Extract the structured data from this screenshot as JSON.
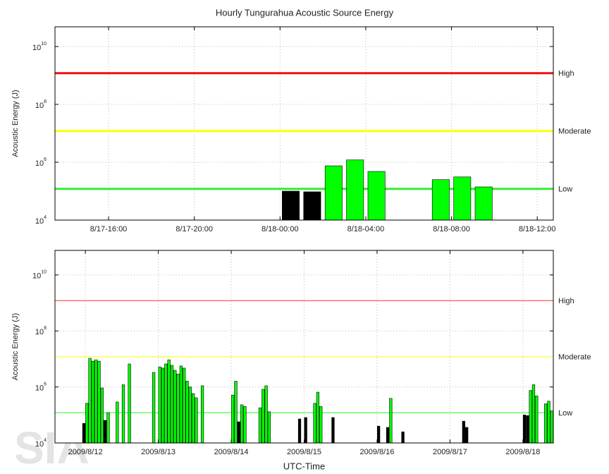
{
  "title": "Hourly Tungurahua Acoustic Source Energy",
  "watermark": "SIA",
  "chart_data": [
    {
      "type": "bar",
      "y_label": "Acoustic Energy (J)",
      "y_log": true,
      "ylim": [
        10000,
        48000000000
      ],
      "yticks": [
        {
          "value": 10000,
          "label": "10",
          "power": "4"
        },
        {
          "value": 1000000,
          "label": "10",
          "power": "6"
        },
        {
          "value": 100000000,
          "label": "10",
          "power": "8"
        },
        {
          "value": 10000000000,
          "label": "10",
          "power": "10"
        }
      ],
      "xlim": [
        "8/17-13:30",
        "8/18-12:45"
      ],
      "xticks": [
        "8/17-16:00",
        "8/17-20:00",
        "8/18-00:00",
        "8/18-04:00",
        "8/18-08:00",
        "8/18-12:00"
      ],
      "grid": true,
      "thresholds": [
        {
          "label": "High",
          "value": 1200000000,
          "color": "#ee1111"
        },
        {
          "label": "Moderate",
          "value": 12000000,
          "color": "#ffff00"
        },
        {
          "label": "Low",
          "value": 120000,
          "color": "#33ee33"
        }
      ],
      "bar_colors": {
        "above": "#00ff00",
        "below": "#000000"
      },
      "x": [
        "8/18-00:00",
        "8/18-01:00",
        "8/18-02:00",
        "8/18-03:00",
        "8/18-04:00",
        "8/18-07:00",
        "8/18-08:00",
        "8/18-09:00"
      ],
      "values": [
        100000,
        95000,
        750000,
        1200000,
        480000,
        250000,
        310000,
        140000
      ]
    },
    {
      "type": "bar",
      "y_label": "Acoustic Energy (J)",
      "x_label": "UTC-Time",
      "y_log": true,
      "ylim": [
        10000,
        75000000000
      ],
      "yticks": [
        {
          "value": 10000,
          "label": "10",
          "power": "4"
        },
        {
          "value": 1000000,
          "label": "10",
          "power": "6"
        },
        {
          "value": 100000000,
          "label": "10",
          "power": "8"
        },
        {
          "value": 10000000000,
          "label": "10",
          "power": "10"
        }
      ],
      "xlim": [
        "2009/8/11 14:00",
        "2009/8/18 10:00"
      ],
      "xticks": [
        "2009/8/12",
        "2009/8/13",
        "2009/8/14",
        "2009/8/15",
        "2009/8/16",
        "2009/8/17",
        "2009/8/18"
      ],
      "grid": true,
      "thresholds": [
        {
          "label": "High",
          "value": 1200000000,
          "color": "#ff7070"
        },
        {
          "label": "Moderate",
          "value": 12000000,
          "color": "#ffff55"
        },
        {
          "label": "Low",
          "value": 120000,
          "color": "#66ff66"
        }
      ],
      "bar_colors": {
        "above": "#00ff00",
        "below": "#000000"
      },
      "x": [
        "2009/8/11 23:00",
        "2009/8/12 00:00",
        "2009/8/12 01:00",
        "2009/8/12 02:00",
        "2009/8/12 03:00",
        "2009/8/12 04:00",
        "2009/8/12 05:00",
        "2009/8/12 06:00",
        "2009/8/12 07:00",
        "2009/8/12 10:00",
        "2009/8/12 12:00",
        "2009/8/12 14:00",
        "2009/8/12 22:00",
        "2009/8/13 00:00",
        "2009/8/13 01:00",
        "2009/8/13 02:00",
        "2009/8/13 03:00",
        "2009/8/13 04:00",
        "2009/8/13 05:00",
        "2009/8/13 06:00",
        "2009/8/13 07:00",
        "2009/8/13 08:00",
        "2009/8/13 09:00",
        "2009/8/13 10:00",
        "2009/8/13 11:00",
        "2009/8/13 12:00",
        "2009/8/13 14:00",
        "2009/8/14 00:00",
        "2009/8/14 01:00",
        "2009/8/14 02:00",
        "2009/8/14 03:00",
        "2009/8/14 04:00",
        "2009/8/14 09:00",
        "2009/8/14 10:00",
        "2009/8/14 11:00",
        "2009/8/14 12:00",
        "2009/8/14 22:00",
        "2009/8/15 00:00",
        "2009/8/15 03:00",
        "2009/8/15 04:00",
        "2009/8/15 05:00",
        "2009/8/15 09:00",
        "2009/8/16 00:00",
        "2009/8/16 03:00",
        "2009/8/16 04:00",
        "2009/8/16 08:00",
        "2009/8/17 04:00",
        "2009/8/17 05:00",
        "2009/8/18 00:00",
        "2009/8/18 01:00",
        "2009/8/18 02:00",
        "2009/8/18 03:00",
        "2009/8/18 04:00",
        "2009/8/18 07:00",
        "2009/8/18 08:00",
        "2009/8/18 09:00"
      ],
      "values": [
        50000,
        260000,
        10500000,
        8300000,
        9300000,
        8300000,
        920000,
        64000,
        120000,
        290000,
        1200000,
        6600000,
        3300000,
        5200000,
        4700000,
        6600000,
        9300000,
        5900000,
        3900000,
        2900000,
        5600000,
        4700000,
        1600000,
        1000000,
        580000,
        410000,
        1100000,
        510000,
        1600000,
        57000,
        230000,
        200000,
        180000,
        820000,
        1100000,
        130000,
        72000,
        81000,
        260000,
        650000,
        200000,
        81000,
        40000,
        36000,
        390000,
        25000,
        60000,
        36000,
        100000,
        95000,
        750000,
        1200000,
        480000,
        250000,
        310000,
        140000
      ]
    }
  ]
}
